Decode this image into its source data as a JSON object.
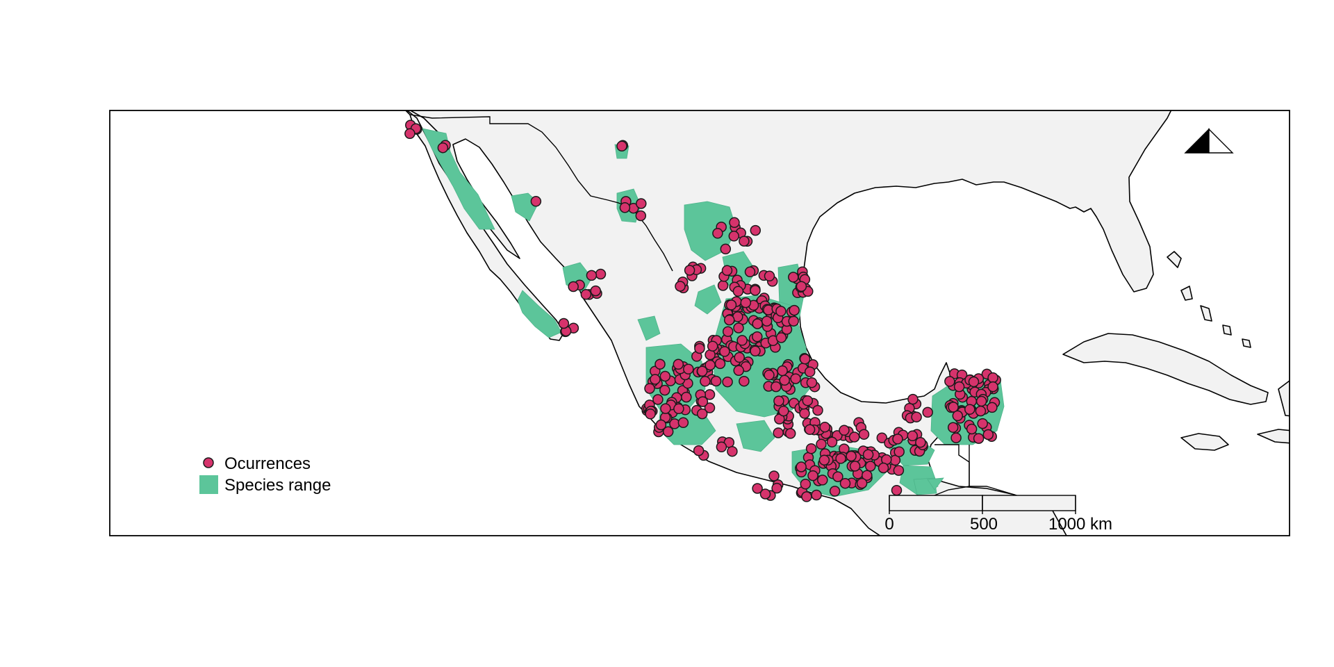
{
  "colors": {
    "ocean": "#ffffff",
    "land": "#f2f2f2",
    "range": "#5cc59a",
    "occurrence": "#d6336c",
    "outline": "#000000"
  },
  "legend": {
    "items": [
      {
        "label": "Ocurrences",
        "symbol": "circle",
        "color": "#d6336c"
      },
      {
        "label": "Species range",
        "symbol": "square",
        "color": "#5cc59a"
      }
    ]
  },
  "scale_bar": {
    "ticks": [
      "0",
      "500",
      "1000 km"
    ]
  },
  "north_arrow": {
    "icon": "north-arrow-icon"
  }
}
